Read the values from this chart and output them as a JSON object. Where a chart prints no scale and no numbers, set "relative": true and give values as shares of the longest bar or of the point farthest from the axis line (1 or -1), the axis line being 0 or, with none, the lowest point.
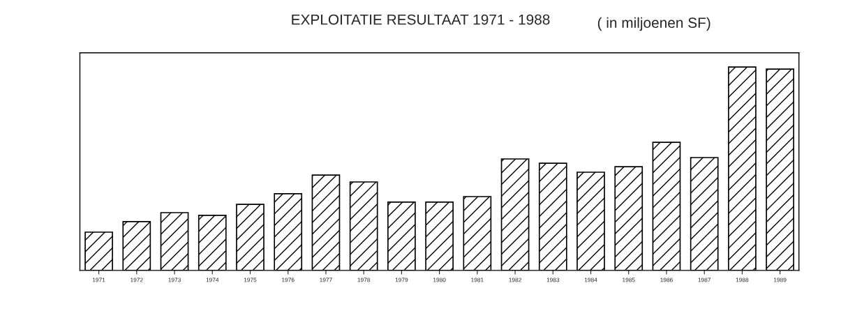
{
  "chart_data": {
    "type": "bar",
    "title": "EXPLOITATIE RESULTAAT 1971 - 1988",
    "subtitle": "( in miljoenen SF)",
    "categories": [
      "1971",
      "1972",
      "1973",
      "1974",
      "1975",
      "1976",
      "1977",
      "1978",
      "1979",
      "1980",
      "1981",
      "1982",
      "1983",
      "1984",
      "1985",
      "1986",
      "1987",
      "1988",
      "1989"
    ],
    "values": [
      0.188,
      0.24,
      0.284,
      0.271,
      0.325,
      0.377,
      0.469,
      0.435,
      0.336,
      0.336,
      0.363,
      0.548,
      0.527,
      0.483,
      0.51,
      0.63,
      0.555,
      1.0,
      0.99
    ],
    "color": "#000000",
    "relative": true,
    "grid": false
  }
}
